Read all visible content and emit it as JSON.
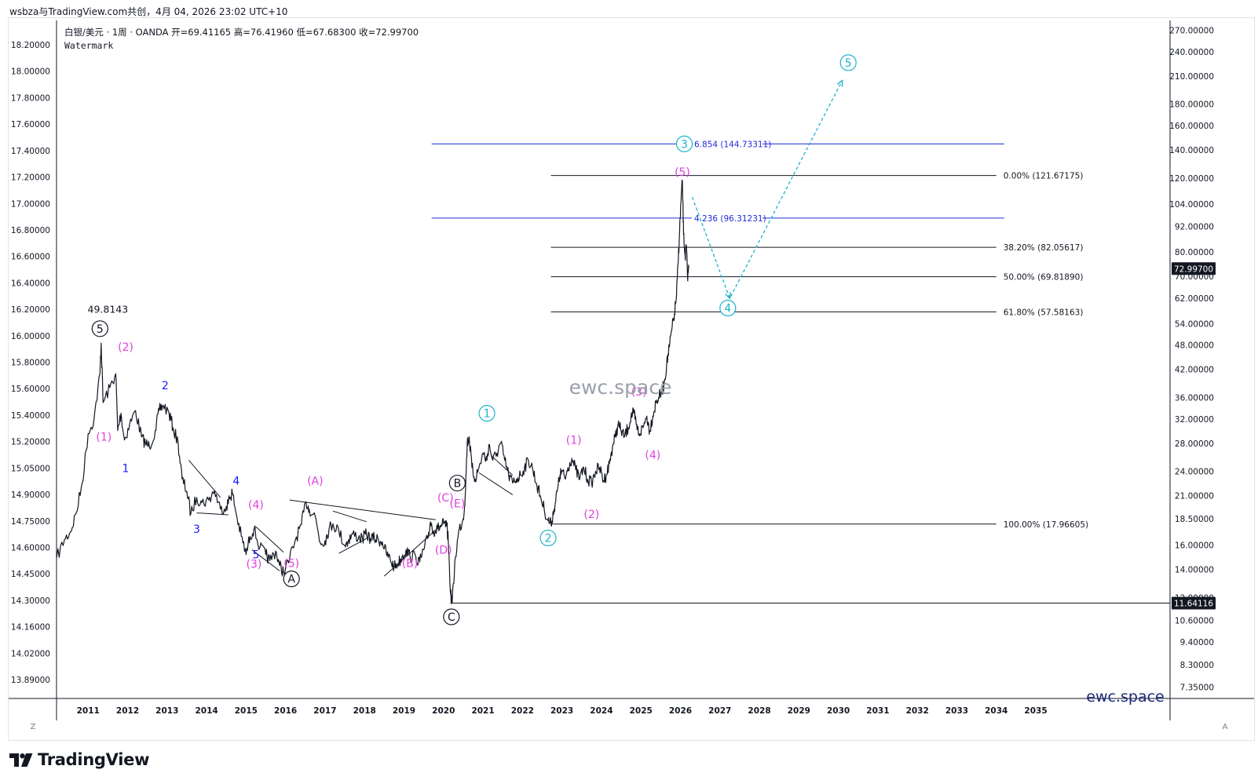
{
  "header": {
    "caption": "wsbza与TradingView.com共创，4月 04, 2026 23:02 UTC+10"
  },
  "legend": {
    "line1": "白银/美元 · 1周 · OANDA  开=69.41165  高=76.41960  低=67.68300  收=72.99700",
    "line2": "Watermark"
  },
  "watermark": {
    "center": "ewc.space",
    "corner": "ewc.space"
  },
  "brand": {
    "name": "TradingView",
    "logo_icon": "tradingview-logo-icon"
  },
  "corner_buttons": {
    "left": "Z",
    "right": "A"
  },
  "colors": {
    "price_line": "#131722",
    "fib_blue": "#1e2bdb",
    "fib_gray": "#131722",
    "wave_magenta": "#e040e0",
    "wave_blue": "#1a1aff",
    "wave_cyan": "#1ab3cc",
    "watermark_gray": "#9aa0ab",
    "watermark_navy": "#1c2a78"
  },
  "chart_data": {
    "type": "line",
    "x_axis": {
      "ticks": [
        "2011",
        "2012",
        "2013",
        "2014",
        "2015",
        "2016",
        "2017",
        "2018",
        "2019",
        "2020",
        "2021",
        "2022",
        "2023",
        "2024",
        "2025",
        "2026",
        "2027",
        "2028",
        "2029",
        "2030",
        "2031",
        "2032",
        "2033",
        "2034",
        "2035"
      ],
      "range": [
        2010.2,
        2038.4
      ]
    },
    "left_axis": {
      "scale": "log",
      "ticks": [
        "18.20000",
        "18.00000",
        "17.80000",
        "17.60000",
        "17.40000",
        "17.20000",
        "17.00000",
        "16.80000",
        "16.60000",
        "16.40000",
        "16.20000",
        "16.00000",
        "15.80000",
        "15.60000",
        "15.40000",
        "15.20000",
        "15.05000",
        "14.90000",
        "14.75000",
        "14.60000",
        "14.45000",
        "14.30000",
        "14.16000",
        "14.02000",
        "13.89000"
      ]
    },
    "right_axis": {
      "scale": "log",
      "ticks": [
        "270.00000",
        "240.00000",
        "210.00000",
        "180.00000",
        "160.00000",
        "140.00000",
        "120.00000",
        "104.00000",
        "92.00000",
        "80.00000",
        "70.00000",
        "62.00000",
        "54.00000",
        "48.00000",
        "42.00000",
        "36.00000",
        "32.00000",
        "28.00000",
        "24.00000",
        "21.00000",
        "18.50000",
        "16.00000",
        "14.00000",
        "12.00000",
        "10.60000",
        "9.40000",
        "8.30000",
        "7.35000"
      ],
      "range": [
        6.9,
        285
      ],
      "price_labels": [
        {
          "value": 72.997,
          "text": "72.99700"
        },
        {
          "value": 11.64116,
          "text": "11.64116"
        }
      ]
    },
    "series": [
      {
        "points": [
          [
            2010.2,
            14.9
          ],
          [
            2010.4,
            16.5
          ],
          [
            2010.55,
            17.2
          ],
          [
            2010.7,
            19.1
          ],
          [
            2010.85,
            22.5
          ],
          [
            2011.0,
            29.5
          ],
          [
            2011.15,
            32
          ],
          [
            2011.3,
            41
          ],
          [
            2011.33,
            48.5
          ],
          [
            2011.38,
            35
          ],
          [
            2011.55,
            38
          ],
          [
            2011.7,
            41
          ],
          [
            2011.75,
            30
          ],
          [
            2011.83,
            33
          ],
          [
            2011.92,
            28.5
          ],
          [
            2012.05,
            31
          ],
          [
            2012.2,
            33.5
          ],
          [
            2012.35,
            29
          ],
          [
            2012.45,
            28
          ],
          [
            2012.55,
            27.5
          ],
          [
            2012.7,
            30
          ],
          [
            2012.8,
            33.5
          ],
          [
            2012.9,
            34.5
          ],
          [
            2013.05,
            33
          ],
          [
            2013.15,
            30.5
          ],
          [
            2013.28,
            28
          ],
          [
            2013.38,
            23
          ],
          [
            2013.5,
            21.5
          ],
          [
            2013.6,
            19
          ],
          [
            2013.75,
            20.8
          ],
          [
            2013.88,
            20.2
          ],
          [
            2014.05,
            20.5
          ],
          [
            2014.2,
            21.6
          ],
          [
            2014.35,
            19.5
          ],
          [
            2014.5,
            19.8
          ],
          [
            2014.6,
            20.8
          ],
          [
            2014.65,
            21.4
          ],
          [
            2014.75,
            19
          ],
          [
            2014.88,
            16.8
          ],
          [
            2015.0,
            15.2
          ],
          [
            2015.1,
            16.8
          ],
          [
            2015.2,
            17.5
          ],
          [
            2015.35,
            15.8
          ],
          [
            2015.5,
            15.2
          ],
          [
            2015.6,
            14.7
          ],
          [
            2015.75,
            15.5
          ],
          [
            2015.85,
            14.3
          ],
          [
            2015.95,
            13.8
          ],
          [
            2016.1,
            14.8
          ],
          [
            2016.25,
            16.5
          ],
          [
            2016.4,
            17.9
          ],
          [
            2016.52,
            20.3
          ],
          [
            2016.6,
            19.5
          ],
          [
            2016.75,
            18.8
          ],
          [
            2016.88,
            16.2
          ],
          [
            2017.0,
            16.4
          ],
          [
            2017.1,
            17.5
          ],
          [
            2017.2,
            18
          ],
          [
            2017.35,
            17.3
          ],
          [
            2017.5,
            16
          ],
          [
            2017.6,
            16.5
          ],
          [
            2017.7,
            17
          ],
          [
            2017.85,
            16.7
          ],
          [
            2017.95,
            16.6
          ],
          [
            2018.05,
            17
          ],
          [
            2018.15,
            16.6
          ],
          [
            2018.25,
            16.6
          ],
          [
            2018.35,
            16.5
          ],
          [
            2018.45,
            16.3
          ],
          [
            2018.55,
            15.3
          ],
          [
            2018.65,
            14.8
          ],
          [
            2018.75,
            14.2
          ],
          [
            2018.85,
            14.5
          ],
          [
            2018.95,
            15
          ],
          [
            2019.05,
            15.6
          ],
          [
            2019.15,
            15.1
          ],
          [
            2019.3,
            15
          ],
          [
            2019.4,
            14.6
          ],
          [
            2019.5,
            15.6
          ],
          [
            2019.6,
            16.6
          ],
          [
            2019.67,
            18.2
          ],
          [
            2019.75,
            17.3
          ],
          [
            2019.85,
            17.5
          ],
          [
            2019.95,
            17.8
          ],
          [
            2020.0,
            18
          ],
          [
            2020.08,
            17.8
          ],
          [
            2020.12,
            16.5
          ],
          [
            2020.18,
            12.2
          ],
          [
            2020.22,
            11.64
          ],
          [
            2020.3,
            15
          ],
          [
            2020.4,
            17.5
          ],
          [
            2020.5,
            18.5
          ],
          [
            2020.55,
            21
          ],
          [
            2020.6,
            28
          ],
          [
            2020.65,
            29
          ],
          [
            2020.72,
            24.5
          ],
          [
            2020.8,
            23
          ],
          [
            2020.9,
            24.5
          ],
          [
            2021.0,
            26.5
          ],
          [
            2021.1,
            25.5
          ],
          [
            2021.15,
            27.8
          ],
          [
            2021.25,
            25.5
          ],
          [
            2021.35,
            26.5
          ],
          [
            2021.45,
            28
          ],
          [
            2021.55,
            25.5
          ],
          [
            2021.65,
            23.5
          ],
          [
            2021.75,
            22.5
          ],
          [
            2021.85,
            23
          ],
          [
            2021.95,
            23.5
          ],
          [
            2022.05,
            24.5
          ],
          [
            2022.15,
            25.5
          ],
          [
            2022.25,
            24.5
          ],
          [
            2022.35,
            22.5
          ],
          [
            2022.45,
            21
          ],
          [
            2022.55,
            19.5
          ],
          [
            2022.65,
            18.3
          ],
          [
            2022.72,
            17.97
          ],
          [
            2022.8,
            19.5
          ],
          [
            2022.88,
            21.5
          ],
          [
            2022.95,
            23.5
          ],
          [
            2023.0,
            24
          ],
          [
            2023.08,
            23
          ],
          [
            2023.15,
            24.5
          ],
          [
            2023.25,
            25.8
          ],
          [
            2023.35,
            24.2
          ],
          [
            2023.45,
            23
          ],
          [
            2023.55,
            24.5
          ],
          [
            2023.65,
            23
          ],
          [
            2023.75,
            22.5
          ],
          [
            2023.85,
            24
          ],
          [
            2023.95,
            24.5
          ],
          [
            2024.05,
            22.8
          ],
          [
            2024.12,
            23.5
          ],
          [
            2024.2,
            25
          ],
          [
            2024.28,
            27.5
          ],
          [
            2024.35,
            29
          ],
          [
            2024.42,
            31
          ],
          [
            2024.5,
            30
          ],
          [
            2024.58,
            29
          ],
          [
            2024.68,
            30.5
          ],
          [
            2024.75,
            32.5
          ],
          [
            2024.82,
            33
          ],
          [
            2024.88,
            31
          ],
          [
            2024.95,
            29.5
          ],
          [
            2025.05,
            30.5
          ],
          [
            2025.15,
            32.5
          ],
          [
            2025.22,
            30
          ],
          [
            2025.3,
            32.5
          ],
          [
            2025.38,
            35
          ],
          [
            2025.45,
            36
          ],
          [
            2025.52,
            37
          ],
          [
            2025.58,
            38.5
          ],
          [
            2025.65,
            43
          ],
          [
            2025.72,
            47.5
          ],
          [
            2025.78,
            52
          ],
          [
            2025.85,
            57
          ],
          [
            2025.9,
            63
          ],
          [
            2025.94,
            75
          ],
          [
            2025.98,
            90
          ],
          [
            2026.02,
            108
          ],
          [
            2026.05,
            118
          ],
          [
            2026.08,
            88
          ],
          [
            2026.12,
            78
          ],
          [
            2026.15,
            83
          ],
          [
            2026.18,
            70
          ],
          [
            2026.21,
            73
          ]
        ]
      }
    ],
    "horizontal_lines": [
      {
        "price": 144.73311,
        "x_start": 2019.7,
        "x_end": 2034.2,
        "label": "6.854 (144.73311)",
        "style": "blue"
      },
      {
        "price": 96.31231,
        "x_start": 2019.7,
        "x_end": 2034.2,
        "label": "4.236 (96.31231)",
        "style": "blue"
      },
      {
        "price": 121.67175,
        "x_start": 2022.72,
        "x_end": 2034.0,
        "label": "0.00% (121.67175)",
        "style": "gray"
      },
      {
        "price": 82.05617,
        "x_start": 2022.72,
        "x_end": 2034.0,
        "label": "38.20% (82.05617)",
        "style": "gray"
      },
      {
        "price": 69.8189,
        "x_start": 2022.72,
        "x_end": 2034.0,
        "label": "50.00% (69.81890)",
        "style": "gray"
      },
      {
        "price": 57.58163,
        "x_start": 2022.72,
        "x_end": 2034.0,
        "label": "61.80% (57.58163)",
        "style": "gray"
      },
      {
        "price": 17.96605,
        "x_start": 2022.72,
        "x_end": 2034.0,
        "label": "100.00% (17.96605)",
        "style": "gray"
      },
      {
        "price": 11.64116,
        "x_start": 2020.22,
        "x_end": 2038.4,
        "label": "",
        "style": "gray"
      }
    ],
    "trend_lines": [
      [
        [
          2013.55,
          25.5
        ],
        [
          2014.35,
          20.8
        ]
      ],
      [
        [
          2013.75,
          19.1
        ],
        [
          2014.55,
          18.9
        ]
      ],
      [
        [
          2015.25,
          17.7
        ],
        [
          2015.95,
          15.4
        ]
      ],
      [
        [
          2015.15,
          15.6
        ],
        [
          2015.85,
          13.9
        ]
      ],
      [
        [
          2016.1,
          20.5
        ],
        [
          2019.8,
          18.4
        ]
      ],
      [
        [
          2017.2,
          19.3
        ],
        [
          2018.05,
          18.2
        ]
      ],
      [
        [
          2017.35,
          15.3
        ],
        [
          2018.1,
          16.7
        ]
      ],
      [
        [
          2018.5,
          13.5
        ],
        [
          2019.95,
          17.9
        ]
      ],
      [
        [
          2021.2,
          26.2
        ],
        [
          2021.75,
          23.5
        ]
      ],
      [
        [
          2020.9,
          23.8
        ],
        [
          2021.75,
          21.1
        ]
      ]
    ],
    "projection": [
      [
        2026.3,
        108
      ],
      [
        2027.25,
        62
      ],
      [
        2030.1,
        205
      ]
    ],
    "wave_labels": [
      {
        "text": "5",
        "x": 2011.3,
        "price": 52.5,
        "circled": true,
        "color": "black"
      },
      {
        "text": "49.8143",
        "x": 2011.5,
        "price": 58.5,
        "circled": false,
        "color": "black"
      },
      {
        "text": "(2)",
        "x": 2011.95,
        "price": 47.5,
        "circled": false,
        "color": "magenta"
      },
      {
        "text": "(1)",
        "x": 2011.4,
        "price": 29,
        "circled": false,
        "color": "magenta"
      },
      {
        "text": "1",
        "x": 2011.95,
        "price": 24.4,
        "circled": false,
        "color": "blue"
      },
      {
        "text": "2",
        "x": 2012.95,
        "price": 38.5,
        "circled": false,
        "color": "blue"
      },
      {
        "text": "3",
        "x": 2013.75,
        "price": 17.5,
        "circled": false,
        "color": "blue"
      },
      {
        "text": "4",
        "x": 2014.75,
        "price": 22.8,
        "circled": false,
        "color": "blue"
      },
      {
        "text": "(4)",
        "x": 2015.25,
        "price": 20,
        "circled": false,
        "color": "magenta"
      },
      {
        "text": "5",
        "x": 2015.25,
        "price": 15.2,
        "circled": false,
        "color": "blue"
      },
      {
        "text": "(3)",
        "x": 2015.2,
        "price": 14.45,
        "circled": false,
        "color": "magenta"
      },
      {
        "text": "(5)",
        "x": 2016.15,
        "price": 14.5,
        "circled": false,
        "color": "magenta"
      },
      {
        "text": "A",
        "x": 2016.15,
        "price": 13.3,
        "circled": true,
        "color": "black"
      },
      {
        "text": "(A)",
        "x": 2016.75,
        "price": 22.8,
        "circled": false,
        "color": "magenta"
      },
      {
        "text": "(B)",
        "x": 2019.15,
        "price": 14.5,
        "circled": false,
        "color": "magenta"
      },
      {
        "text": "B",
        "x": 2020.35,
        "price": 22.5,
        "circled": true,
        "color": "black"
      },
      {
        "text": "(C)",
        "x": 2020.05,
        "price": 20.8,
        "circled": false,
        "color": "magenta"
      },
      {
        "text": "(E)",
        "x": 2020.35,
        "price": 20.1,
        "circled": false,
        "color": "magenta"
      },
      {
        "text": "(D)",
        "x": 2020.0,
        "price": 15.6,
        "circled": false,
        "color": "magenta"
      },
      {
        "text": "C",
        "x": 2020.2,
        "price": 10.8,
        "circled": true,
        "color": "black"
      },
      {
        "text": "1",
        "x": 2021.1,
        "price": 33,
        "circled": true,
        "color": "cyan"
      },
      {
        "text": "2",
        "x": 2022.65,
        "price": 16.65,
        "circled": true,
        "color": "cyan"
      },
      {
        "text": "(1)",
        "x": 2023.3,
        "price": 28.5,
        "circled": false,
        "color": "magenta"
      },
      {
        "text": "(2)",
        "x": 2023.75,
        "price": 19,
        "circled": false,
        "color": "magenta"
      },
      {
        "text": "(3)",
        "x": 2024.95,
        "price": 37.2,
        "circled": false,
        "color": "magenta"
      },
      {
        "text": "(4)",
        "x": 2025.3,
        "price": 26.3,
        "circled": false,
        "color": "magenta"
      },
      {
        "text": "(5)",
        "x": 2026.05,
        "price": 124,
        "circled": false,
        "color": "magenta"
      },
      {
        "text": "3",
        "x": 2026.1,
        "price": 144.7,
        "circled": true,
        "color": "cyan"
      },
      {
        "text": "4",
        "x": 2027.2,
        "price": 58.8,
        "circled": true,
        "color": "cyan"
      },
      {
        "text": "5",
        "x": 2030.25,
        "price": 226,
        "circled": true,
        "color": "cyan"
      }
    ]
  }
}
